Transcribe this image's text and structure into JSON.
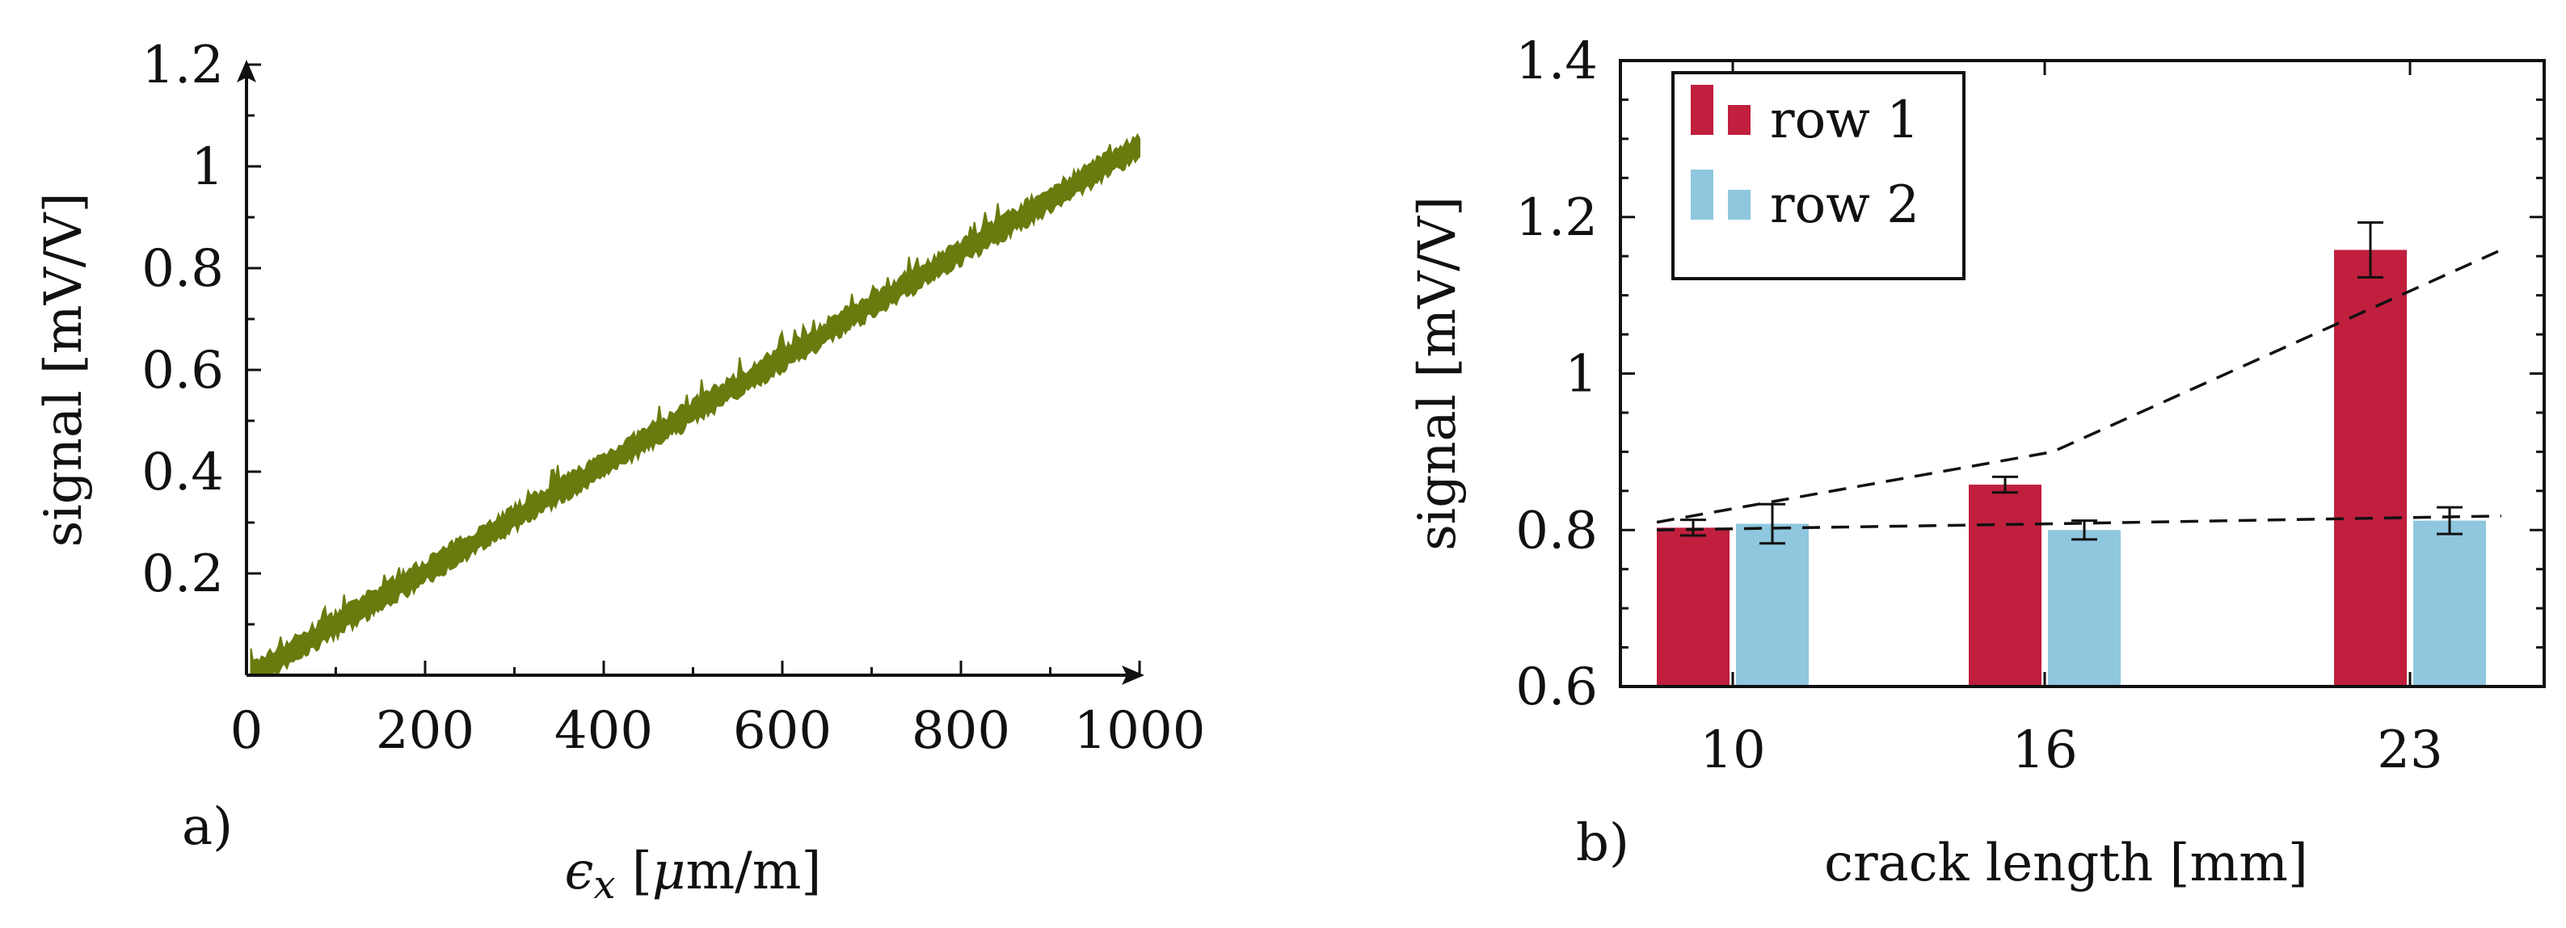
{
  "chart_data": [
    {
      "id": "a",
      "type": "line",
      "panel_label": "a)",
      "xlabel_parts": [
        "ϵ",
        "x",
        " [",
        "μ",
        "m/m]"
      ],
      "ylabel": "signal [mV/V]",
      "xlim": [
        0,
        1000
      ],
      "ylim": [
        0,
        1.2
      ],
      "xticks": [
        0,
        200,
        400,
        600,
        800,
        1000
      ],
      "xtick_labels": [
        "0",
        "200",
        "400",
        "600",
        "800",
        "1000"
      ],
      "yticks": [
        0.2,
        0.4,
        0.6,
        0.8,
        1.0,
        1.2
      ],
      "ytick_labels": [
        "0.2",
        "0.4",
        "0.6",
        "0.8",
        "1",
        "1.2"
      ],
      "series": [
        {
          "name": "signal",
          "color": "#6b7a0e",
          "x_start": 5,
          "x_end": 1000,
          "y_start": 0.0,
          "y_end": 1.04,
          "noise_band": 0.02
        }
      ]
    },
    {
      "id": "b",
      "type": "bar",
      "panel_label": "b)",
      "xlabel": "crack length [mm]",
      "ylabel": "signal [mV/V]",
      "ylim": [
        0.6,
        1.4
      ],
      "categories": [
        "10",
        "16",
        "23"
      ],
      "yticks": [
        0.6,
        0.8,
        1.0,
        1.2,
        1.4
      ],
      "ytick_labels": [
        "0.6",
        "0.8",
        "1",
        "1.2",
        "1.4"
      ],
      "series": [
        {
          "name": "row 1",
          "color": "#c01f3e",
          "values": [
            0.803,
            0.858,
            1.158
          ],
          "errors": [
            0.01,
            0.01,
            0.035
          ]
        },
        {
          "name": "row 2",
          "color": "#8ec7de",
          "values": [
            0.808,
            0.8,
            0.812
          ],
          "errors": [
            0.025,
            0.012,
            0.017
          ]
        }
      ],
      "trend_lines": [
        {
          "series": "row 1",
          "values": [
            0.81,
            0.9,
            1.158
          ]
        },
        {
          "series": "row 2",
          "values": [
            0.8,
            0.808,
            0.818
          ]
        }
      ],
      "legend_position": "top-left"
    }
  ]
}
